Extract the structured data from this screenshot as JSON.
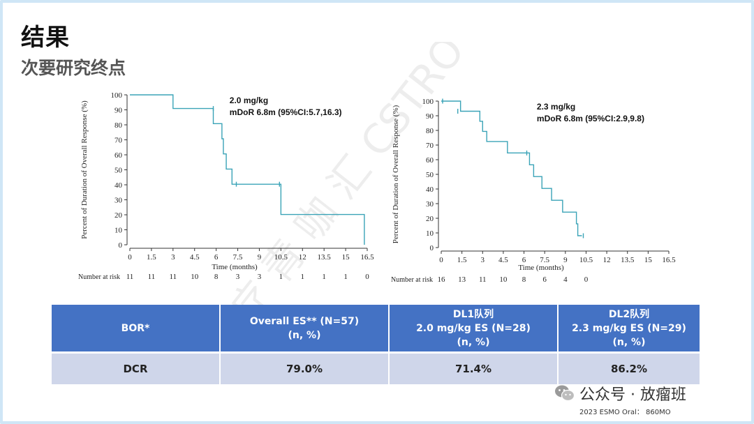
{
  "slide": {
    "title": "结果",
    "subtitle": "次要研究终点",
    "watermark": "放 疗 青 咖 汇   CSTRO YOUNG@163.COM",
    "wechat": "公众号 · 放瘤班",
    "footnote": "2023 ESMO Oral： 860MO"
  },
  "chart_data": [
    {
      "type": "line",
      "step": true,
      "annotation": [
        "2.0 mg/kg",
        "mDoR 6.8m (95%CI:5.7,16.3)"
      ],
      "xlabel": "Time (months)",
      "ylabel": "Percent of Duration of Overall Response (%)",
      "xlim": [
        0,
        16.5
      ],
      "ylim": [
        0,
        100
      ],
      "x_ticks": [
        "0",
        "1.5",
        "3",
        "4.5",
        "6",
        "7.5",
        "9",
        "10.5",
        "12",
        "13.5",
        "15",
        "16.5"
      ],
      "y_ticks": [
        "0",
        "10",
        "20",
        "30",
        "40",
        "50",
        "60",
        "70",
        "80",
        "90",
        "100"
      ],
      "line_color": "#3aa3b7",
      "series": [
        {
          "x": [
            0,
            3,
            5.8,
            6.4,
            6.5,
            6.7,
            7.1,
            10.5,
            16.3
          ],
          "y": [
            100,
            90.9,
            80.8,
            70.7,
            60.6,
            50.5,
            40.4,
            20.2,
            0
          ],
          "censored": [
            [
              5.8,
              90.9
            ],
            [
              7.4,
              40.4
            ],
            [
              10.4,
              40.4
            ]
          ]
        }
      ],
      "risk_label": "Number at risk",
      "risk_times": [
        0,
        1.5,
        3,
        4.5,
        6,
        7.5,
        9,
        10.5,
        12,
        13.5,
        15,
        16.5
      ],
      "risk_values": [
        "11",
        "11",
        "11",
        "10",
        "8",
        "3",
        "3",
        "1",
        "1",
        "1",
        "1",
        "0"
      ]
    },
    {
      "type": "line",
      "step": true,
      "annotation": [
        "2.3 mg/kg",
        "mDoR 6.8m (95%CI:2.9,9.8)"
      ],
      "xlabel": "Time (months)",
      "ylabel": "Percent of Duration of Overall Response (%)",
      "xlim": [
        0,
        16.5
      ],
      "ylim": [
        0,
        100
      ],
      "x_ticks": [
        "0",
        "1.5",
        "3",
        "4.5",
        "6",
        "7.5",
        "9",
        "10.5",
        "12",
        "13.5",
        "15",
        "16.5"
      ],
      "y_ticks": [
        "0",
        "10",
        "20",
        "30",
        "40",
        "50",
        "60",
        "70",
        "80",
        "90",
        "100"
      ],
      "line_color": "#3aa3b7",
      "series": [
        {
          "x": [
            0,
            1.4,
            2.8,
            3.0,
            3.3,
            4.8,
            6.4,
            6.7,
            7.3,
            8.0,
            8.8,
            9.8,
            9.9,
            10.2
          ],
          "y": [
            100,
            93.1,
            86.2,
            79.3,
            72.4,
            64.6,
            56.5,
            48.5,
            40.4,
            32.3,
            24.2,
            16.2,
            8.1,
            8.1
          ],
          "censored": [
            [
              0.1,
              100
            ],
            [
              1.2,
              93.1
            ],
            [
              6.2,
              64.6
            ],
            [
              10.3,
              8.1
            ]
          ]
        }
      ],
      "risk_label": "Number at risk",
      "risk_times": [
        0,
        1.5,
        3,
        4.5,
        6,
        7.5,
        9,
        10.5
      ],
      "risk_values": [
        "16",
        "13",
        "11",
        "10",
        "8",
        "6",
        "4",
        "0"
      ]
    }
  ],
  "table": {
    "headers": [
      [
        "BOR*"
      ],
      [
        "Overall ES** (N=57)",
        "(n, %)"
      ],
      [
        "DL1队列",
        "2.0 mg/kg ES (N=28)",
        "(n, %)"
      ],
      [
        "DL2队列",
        "2.3 mg/kg ES (N=29)",
        "(n, %)"
      ]
    ],
    "rows": [
      [
        "DCR",
        "79.0%",
        "71.4%",
        "86.2%"
      ]
    ]
  }
}
